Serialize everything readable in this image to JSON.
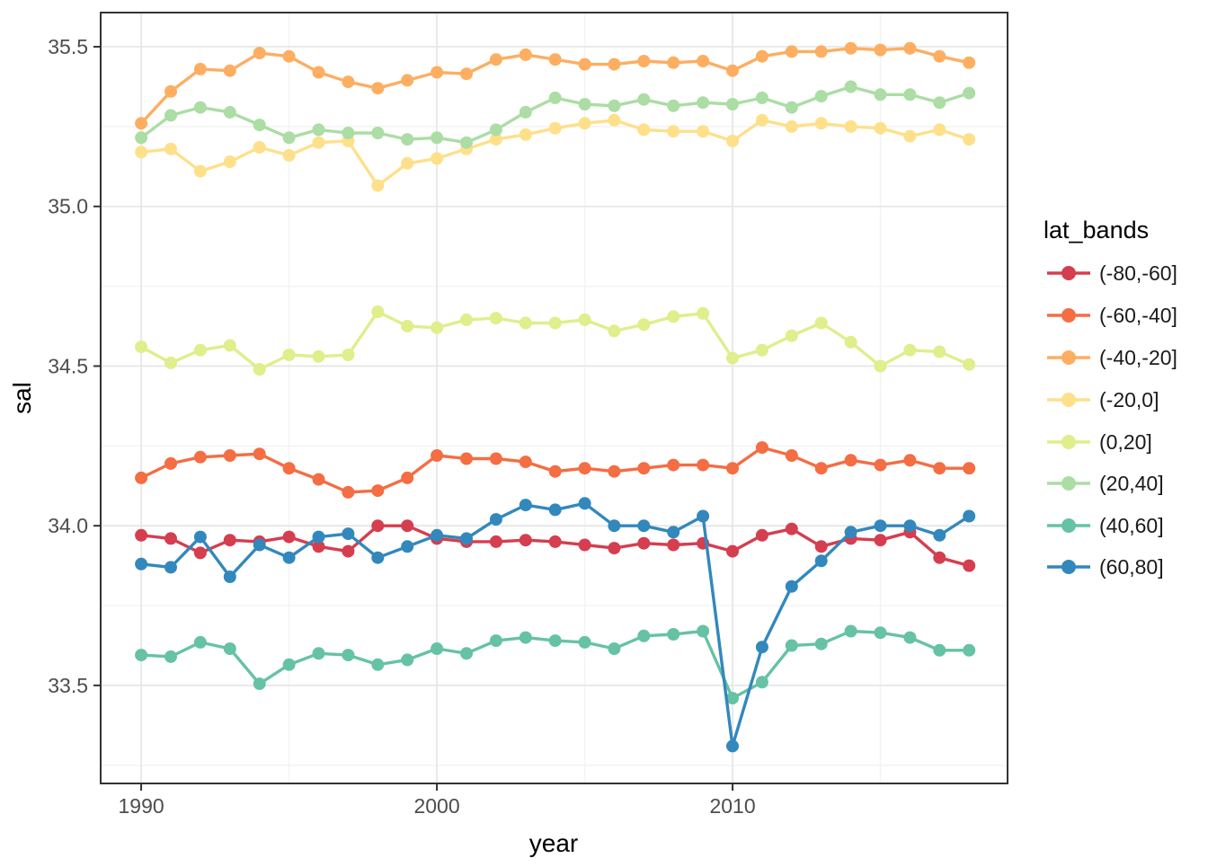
{
  "figure": {
    "xlabel": "year",
    "ylabel": "sal",
    "legend_title": "lat_bands"
  },
  "chart_data": {
    "type": "line",
    "title": "",
    "xlabel": "year",
    "ylabel": "sal",
    "legend_title": "lat_bands",
    "legend_position": "right",
    "grid": true,
    "xlim": [
      1988.63,
      2019.3
    ],
    "ylim": [
      33.193,
      35.607
    ],
    "x_ticks": [
      1990,
      2000,
      2010
    ],
    "x_minor": [
      1995,
      2005,
      2015
    ],
    "y_ticks": [
      33.5,
      34.0,
      34.5,
      35.0,
      35.5
    ],
    "y_minor": [
      33.25,
      33.75,
      34.25,
      34.75,
      35.25
    ],
    "x": [
      1990,
      1991,
      1992,
      1993,
      1994,
      1995,
      1996,
      1997,
      1998,
      1999,
      2000,
      2001,
      2002,
      2003,
      2004,
      2005,
      2006,
      2007,
      2008,
      2009,
      2010,
      2011,
      2012,
      2013,
      2014,
      2015,
      2016,
      2017,
      2018
    ],
    "series": [
      {
        "name": "(-80,-60]",
        "color": "#D53E4F",
        "values": [
          33.97,
          33.96,
          33.915,
          33.955,
          33.95,
          33.965,
          33.935,
          33.92,
          34.0,
          34.0,
          33.96,
          33.95,
          33.95,
          33.955,
          33.95,
          33.94,
          33.93,
          33.945,
          33.94,
          33.945,
          33.92,
          33.97,
          33.99,
          33.935,
          33.96,
          33.955,
          33.98,
          33.9,
          33.875
        ]
      },
      {
        "name": "(-60,-40]",
        "color": "#F46D43",
        "values": [
          34.15,
          34.195,
          34.215,
          34.22,
          34.225,
          34.18,
          34.145,
          34.105,
          34.11,
          34.15,
          34.22,
          34.21,
          34.21,
          34.2,
          34.17,
          34.18,
          34.17,
          34.18,
          34.19,
          34.19,
          34.18,
          34.245,
          34.22,
          34.18,
          34.205,
          34.19,
          34.205,
          34.18,
          34.18
        ]
      },
      {
        "name": "(-40,-20]",
        "color": "#FDAE61",
        "values": [
          35.26,
          35.36,
          35.43,
          35.425,
          35.48,
          35.47,
          35.42,
          35.39,
          35.37,
          35.395,
          35.42,
          35.415,
          35.46,
          35.475,
          35.46,
          35.445,
          35.445,
          35.455,
          35.45,
          35.455,
          35.425,
          35.47,
          35.485,
          35.485,
          35.495,
          35.49,
          35.495,
          35.47,
          35.45
        ]
      },
      {
        "name": "(-20,0]",
        "color": "#FEE08B",
        "values": [
          35.17,
          35.18,
          35.11,
          35.14,
          35.185,
          35.16,
          35.2,
          35.205,
          35.065,
          35.135,
          35.15,
          35.18,
          35.21,
          35.225,
          35.245,
          35.26,
          35.27,
          35.24,
          35.235,
          35.235,
          35.205,
          35.27,
          35.25,
          35.26,
          35.25,
          35.245,
          35.22,
          35.24,
          35.21
        ]
      },
      {
        "name": "(0,20]",
        "color": "#E0EE8B",
        "values": [
          34.56,
          34.51,
          34.55,
          34.565,
          34.49,
          34.535,
          34.53,
          34.535,
          34.67,
          34.625,
          34.62,
          34.645,
          34.65,
          34.635,
          34.635,
          34.645,
          34.61,
          34.63,
          34.655,
          34.665,
          34.525,
          34.55,
          34.595,
          34.635,
          34.575,
          34.5,
          34.55,
          34.545,
          34.505
        ]
      },
      {
        "name": "(20,40]",
        "color": "#ABDDA4",
        "values": [
          35.215,
          35.285,
          35.31,
          35.295,
          35.255,
          35.215,
          35.24,
          35.23,
          35.23,
          35.21,
          35.215,
          35.2,
          35.24,
          35.295,
          35.34,
          35.32,
          35.315,
          35.335,
          35.315,
          35.325,
          35.32,
          35.34,
          35.31,
          35.345,
          35.375,
          35.35,
          35.35,
          35.325,
          35.355
        ]
      },
      {
        "name": "(40,60]",
        "color": "#66C2A5",
        "values": [
          33.595,
          33.59,
          33.635,
          33.615,
          33.505,
          33.565,
          33.6,
          33.595,
          33.565,
          33.58,
          33.615,
          33.6,
          33.64,
          33.65,
          33.64,
          33.635,
          33.615,
          33.655,
          33.66,
          33.67,
          33.46,
          33.51,
          33.625,
          33.63,
          33.67,
          33.665,
          33.65,
          33.61,
          33.61
        ]
      },
      {
        "name": "(60,80]",
        "color": "#3288BD",
        "values": [
          33.88,
          33.87,
          33.965,
          33.84,
          33.94,
          33.9,
          33.965,
          33.975,
          33.9,
          33.935,
          33.97,
          33.96,
          34.02,
          34.065,
          34.05,
          34.07,
          34.0,
          34.0,
          33.98,
          34.03,
          33.31,
          33.62,
          33.81,
          33.89,
          33.98,
          34.0,
          34.0,
          33.97,
          34.03
        ]
      }
    ]
  }
}
